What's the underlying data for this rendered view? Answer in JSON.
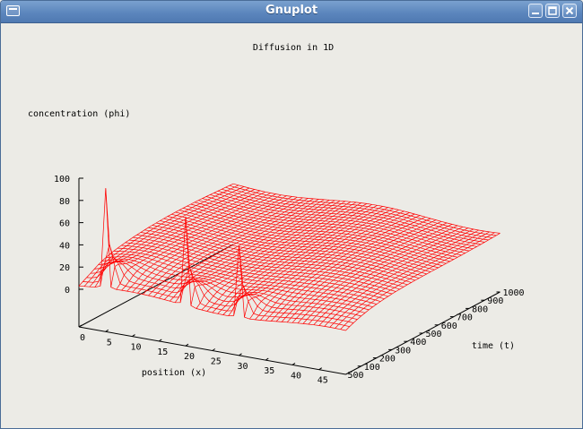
{
  "window": {
    "title": "Gnuplot"
  },
  "chart_data": {
    "type": "surface",
    "title": "Diffusion in 1D",
    "zlabel": "concentration (phi)",
    "xlabel": "position (x)",
    "ylabel": "time (t)",
    "x_ticks": [
      "0",
      "5",
      "10",
      "15",
      "20",
      "25",
      "30",
      "35",
      "40",
      "45"
    ],
    "y_ticks": [
      "100",
      "200",
      "300",
      "400",
      "500",
      "600",
      "700",
      "800",
      "900",
      "1000"
    ],
    "y_tick_extra": "500",
    "z_ticks": [
      "0",
      "20",
      "40",
      "60",
      "80",
      "100"
    ],
    "xlim": [
      0,
      50
    ],
    "ylim": [
      0,
      1000
    ],
    "zlim": [
      0,
      100
    ],
    "initial_peaks": [
      {
        "x": 5,
        "z": 95
      },
      {
        "x": 20,
        "z": 85
      },
      {
        "x": 30,
        "z": 70
      }
    ],
    "final_level": 22,
    "mesh_color": "#ff0000"
  }
}
